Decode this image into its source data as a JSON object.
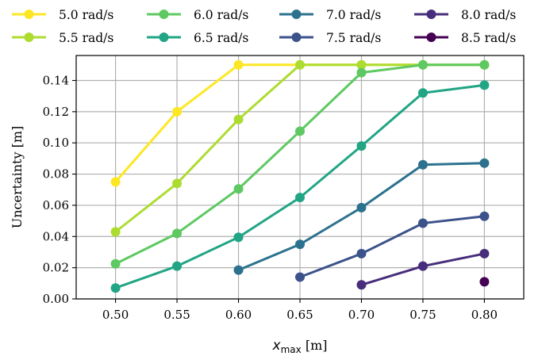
{
  "chart_data": {
    "type": "line",
    "xlabel": "x",
    "xlabel_sub": "max",
    "xlabel_unit": " [m]",
    "ylabel": "Uncertainty [m]",
    "xlim": [
      0.468,
      0.832
    ],
    "ylim": [
      0,
      0.156
    ],
    "x_ticks": [
      0.5,
      0.55,
      0.6,
      0.65,
      0.7,
      0.75,
      0.8
    ],
    "x_tick_labels": [
      "0.50",
      "0.55",
      "0.60",
      "0.65",
      "0.70",
      "0.75",
      "0.80"
    ],
    "y_ticks": [
      0,
      0.02,
      0.04,
      0.06,
      0.08,
      0.1,
      0.12,
      0.14
    ],
    "y_tick_labels": [
      "0.00",
      "0.02",
      "0.04",
      "0.06",
      "0.08",
      "0.10",
      "0.12",
      "0.14"
    ],
    "grid": true,
    "legend_position": "top",
    "series": [
      {
        "name": "5.0 rad/s",
        "color": "#fde725",
        "x": [
          0.5,
          0.55,
          0.6,
          0.65,
          0.7,
          0.75,
          0.8
        ],
        "values": [
          0.075,
          0.12,
          0.15,
          0.15,
          0.15,
          0.15,
          0.15
        ]
      },
      {
        "name": "5.5 rad/s",
        "color": "#addc30",
        "x": [
          0.5,
          0.55,
          0.6,
          0.65,
          0.7,
          0.75,
          0.8
        ],
        "values": [
          0.043,
          0.074,
          0.115,
          0.15,
          0.15,
          0.15,
          0.15
        ]
      },
      {
        "name": "6.0 rad/s",
        "color": "#5ec962",
        "x": [
          0.5,
          0.55,
          0.6,
          0.65,
          0.7,
          0.75,
          0.8
        ],
        "values": [
          0.0225,
          0.042,
          0.0705,
          0.1075,
          0.145,
          0.15,
          0.15
        ]
      },
      {
        "name": "6.5 rad/s",
        "color": "#21a585",
        "x": [
          0.5,
          0.55,
          0.6,
          0.65,
          0.7,
          0.75,
          0.8
        ],
        "values": [
          0.007,
          0.021,
          0.0395,
          0.065,
          0.098,
          0.132,
          0.137
        ]
      },
      {
        "name": "7.0 rad/s",
        "color": "#2c728e",
        "x": [
          0.6,
          0.65,
          0.7,
          0.75,
          0.8
        ],
        "values": [
          0.0185,
          0.035,
          0.0585,
          0.086,
          0.087
        ]
      },
      {
        "name": "7.5 rad/s",
        "color": "#3b528b",
        "x": [
          0.65,
          0.7,
          0.75,
          0.8
        ],
        "values": [
          0.014,
          0.029,
          0.0485,
          0.053
        ]
      },
      {
        "name": "8.0 rad/s",
        "color": "#472d7b",
        "x": [
          0.7,
          0.75,
          0.8
        ],
        "values": [
          0.009,
          0.021,
          0.029
        ]
      },
      {
        "name": "8.5 rad/s",
        "color": "#440154",
        "x": [
          0.8
        ],
        "values": [
          0.011
        ]
      }
    ]
  }
}
